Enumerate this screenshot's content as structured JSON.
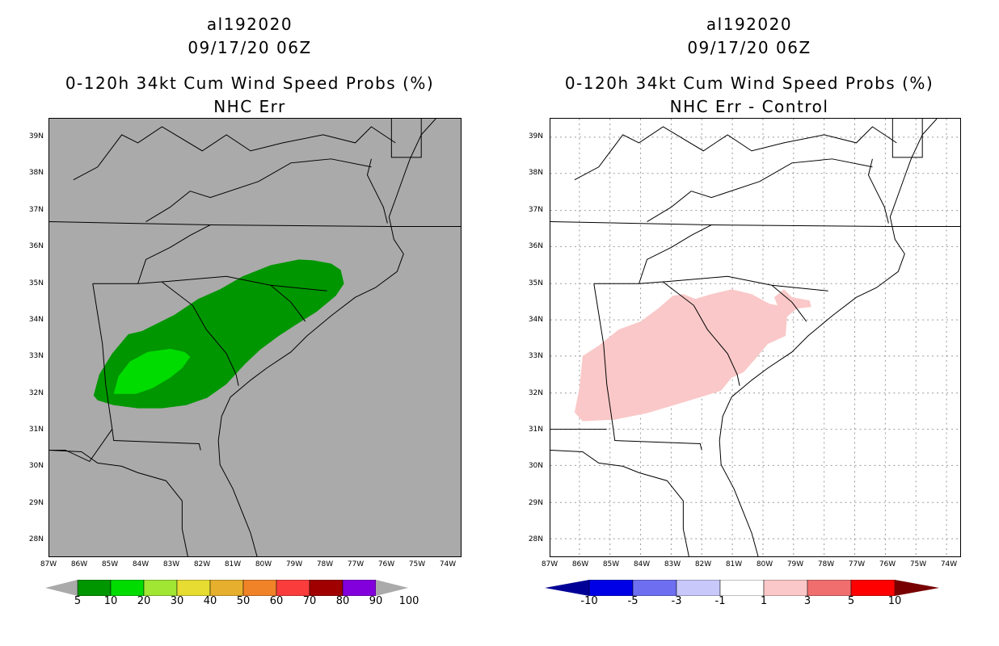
{
  "left": {
    "title1": "al192020",
    "title2": "09/17/20 06Z",
    "title3": "0-120h 34kt Cum Wind Speed Probs (%)",
    "title4": "NHC Err",
    "map_background": "#aaaaaa",
    "colorbar": {
      "colors": [
        "#009600",
        "#00dc00",
        "#a0e632",
        "#e6dc32",
        "#e6af2d",
        "#f08228",
        "#fa3c3c",
        "#a00000",
        "#8200dc"
      ],
      "end_color": "#aaaaaa",
      "labels": [
        "5",
        "10",
        "20",
        "30",
        "40",
        "50",
        "60",
        "70",
        "80",
        "90",
        "100"
      ]
    }
  },
  "right": {
    "title1": "al192020",
    "title2": "09/17/20 06Z",
    "title3": "0-120h 34kt Cum Wind Speed Probs (%)",
    "title4": "NHC Err - Control",
    "map_background": "#ffffff",
    "colorbar": {
      "colors": [
        "#0000e6",
        "#6e6ef0",
        "#c8c8fa",
        "#ffffff",
        "#fac8c8",
        "#f06e6e",
        "#ff0000"
      ],
      "start_color": "#000096",
      "end_color": "#780000",
      "labels": [
        "-10",
        "-5",
        "-3",
        "-1",
        "1",
        "3",
        "5",
        "10"
      ]
    }
  },
  "axes": {
    "lat_labels": [
      "39N",
      "38N",
      "37N",
      "36N",
      "35N",
      "34N",
      "33N",
      "32N",
      "31N",
      "30N",
      "29N",
      "28N"
    ],
    "lon_labels": [
      "87W",
      "86W",
      "85W",
      "84W",
      "83W",
      "82W",
      "81W",
      "80W",
      "79W",
      "78W",
      "77W",
      "76W",
      "75W",
      "74W"
    ]
  },
  "colors": {
    "prob_5_10": "#009600",
    "prob_10_20": "#00dc00",
    "diff_1_3": "#fac8c8"
  }
}
